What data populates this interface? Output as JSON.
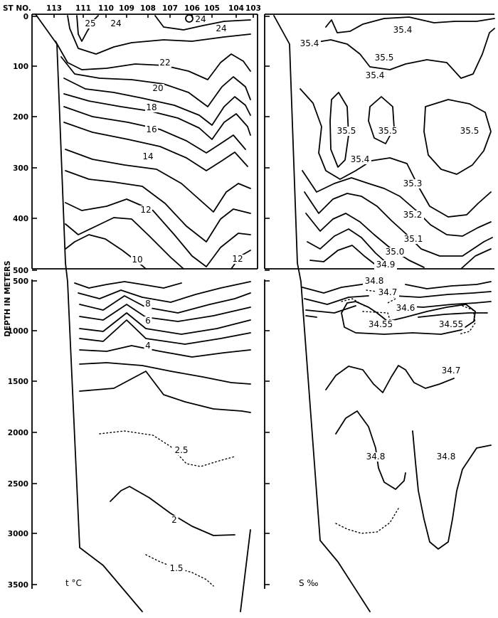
{
  "chart_data": {
    "type": "contour",
    "y_axis_label": "DEPTH IN METERS",
    "station_label": "ST NO.",
    "stations": [
      "113",
      "111",
      "110",
      "109",
      "108",
      "107",
      "106",
      "105",
      "104",
      "103"
    ],
    "upper_depth_ticks": [
      "0",
      "100",
      "200",
      "300",
      "400",
      "500"
    ],
    "lower_depth_ticks": [
      "500",
      "1000",
      "1500",
      "2000",
      "2500",
      "3000",
      "3500"
    ],
    "temperature_panel": {
      "label": "t  °C",
      "contours": [
        {
          "label": "25",
          "value": 25
        },
        {
          "label": "24",
          "value": 24
        },
        {
          "label": "24",
          "value": 24
        },
        {
          "label": "24",
          "value": 24
        },
        {
          "label": "22",
          "value": 22
        },
        {
          "label": "20",
          "value": 20
        },
        {
          "label": "18",
          "value": 18
        },
        {
          "label": "16",
          "value": 16
        },
        {
          "label": "14",
          "value": 14
        },
        {
          "label": "12",
          "value": 12
        },
        {
          "label": "12",
          "value": 12
        },
        {
          "label": "10",
          "value": 10
        },
        {
          "label": "8",
          "value": 8
        },
        {
          "label": "6",
          "value": 6
        },
        {
          "label": "4",
          "value": 4
        },
        {
          "label": "2.5",
          "value": 2.5
        },
        {
          "label": "2",
          "value": 2
        },
        {
          "label": "1.5",
          "value": 1.5
        }
      ]
    },
    "salinity_panel": {
      "label": "S  ‰",
      "contours": [
        {
          "label": "35.4",
          "value": 35.4
        },
        {
          "label": "35.4",
          "value": 35.4
        },
        {
          "label": "35.5",
          "value": 35.5
        },
        {
          "label": "35.4",
          "value": 35.4
        },
        {
          "label": "35.5",
          "value": 35.5
        },
        {
          "label": "35.5",
          "value": 35.5
        },
        {
          "label": "35.5",
          "value": 35.5
        },
        {
          "label": "35.4",
          "value": 35.4
        },
        {
          "label": "35.3",
          "value": 35.3
        },
        {
          "label": "35.2",
          "value": 35.2
        },
        {
          "label": "35.1",
          "value": 35.1
        },
        {
          "label": "35.0",
          "value": 35.0
        },
        {
          "label": "34.9",
          "value": 34.9
        },
        {
          "label": "34.8",
          "value": 34.8
        },
        {
          "label": "34.7",
          "value": 34.7
        },
        {
          "label": "34.6",
          "value": 34.6
        },
        {
          "label": "34.55",
          "value": 34.55
        },
        {
          "label": "34.55",
          "value": 34.55
        },
        {
          "label": "34.7",
          "value": 34.7
        },
        {
          "label": "34.8",
          "value": 34.8
        },
        {
          "label": "34.8",
          "value": 34.8
        }
      ]
    }
  }
}
